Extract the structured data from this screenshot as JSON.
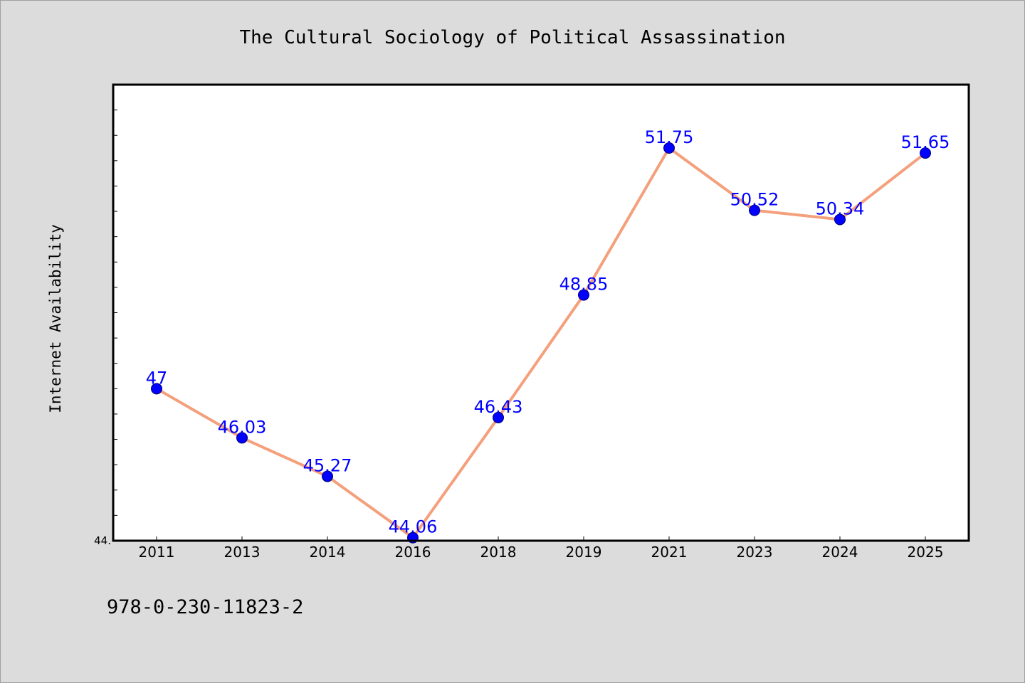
{
  "chart_data": {
    "type": "line",
    "title": "The Cultural Sociology of Political Assassination",
    "xlabel": "",
    "ylabel": "Internet Availability",
    "categories": [
      "2011",
      "2013",
      "2014",
      "2016",
      "2018",
      "2019",
      "2021",
      "2023",
      "2024",
      "2025"
    ],
    "series": [
      {
        "values": [
          47,
          46.03,
          45.27,
          44.06,
          46.43,
          48.85,
          51.75,
          50.52,
          50.34,
          51.65
        ],
        "labels": [
          "47",
          "46.03",
          "45.27",
          "44.06",
          "46.43",
          "48.85",
          "51.75",
          "50.52",
          "50.34",
          "51.65"
        ]
      }
    ],
    "ylim": [
      44.0,
      53.0
    ],
    "yticks_labeled": [
      {
        "value": 44.0,
        "label": "44."
      }
    ],
    "grid": false,
    "colors": {
      "line": "#f4a07c",
      "marker": "#0000ff",
      "data_label": "#0000ff",
      "background": "#dcdcdc",
      "plot_background": "#ffffff"
    }
  },
  "footer": {
    "isbn": "978-0-230-11823-2"
  }
}
